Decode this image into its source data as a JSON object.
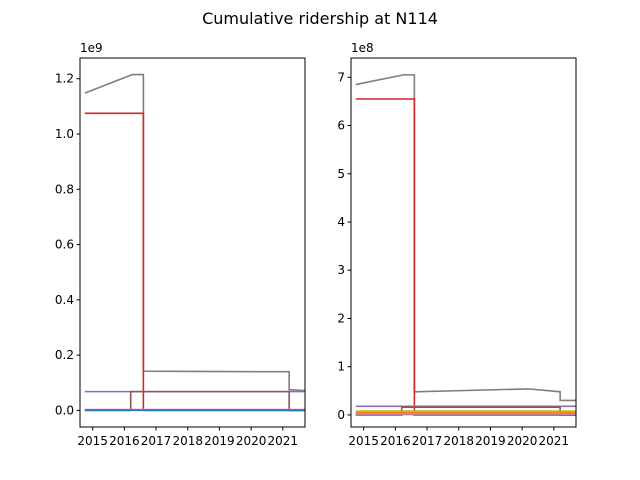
{
  "chart_data": {
    "title": "Cumulative ridership at N114",
    "colors": {
      "blue": "#1f77b4",
      "orange": "#ff7f0e",
      "green": "#2ca02c",
      "red": "#d62728",
      "purple": "#9467bd",
      "brown": "#8c564b",
      "pink": "#e377c2",
      "gray": "#7f7f7f",
      "olive": "#bcbd22",
      "cyan": "#17becf"
    },
    "panels": [
      {
        "type": "line",
        "step": "post",
        "multiplier_label": "1e9",
        "xlim": [
          2014.6,
          2021.7
        ],
        "ylim": [
          -0.06,
          1.275
        ],
        "xticks": [
          {
            "value": 2015,
            "label": "2015"
          },
          {
            "value": 2016,
            "label": "2016"
          },
          {
            "value": 2017,
            "label": "2017"
          },
          {
            "value": 2018,
            "label": "2018"
          },
          {
            "value": 2019,
            "label": "2019"
          },
          {
            "value": 2020,
            "label": "2020"
          },
          {
            "value": 2021,
            "label": "2021"
          }
        ],
        "yticks": [
          {
            "value": 0.0,
            "label": "0.0"
          },
          {
            "value": 0.2,
            "label": "0.2"
          },
          {
            "value": 0.4,
            "label": "0.4"
          },
          {
            "value": 0.6,
            "label": "0.6"
          },
          {
            "value": 0.8,
            "label": "0.8"
          },
          {
            "value": 1.0,
            "label": "1.0"
          },
          {
            "value": 1.2,
            "label": "1.2"
          }
        ],
        "series": [
          {
            "color": "gray",
            "x": [
              2014.75,
              2016.25,
              2016.6,
              2016.6,
              2020.2,
              2021.2,
              2021.2,
              2021.7
            ],
            "y": [
              1.148,
              1.215,
              1.215,
              0.142,
              0.14,
              0.14,
              0.075,
              0.072
            ]
          },
          {
            "color": "red",
            "x": [
              2014.75,
              2016.6,
              2016.6,
              2021.7
            ],
            "y": [
              1.075,
              1.075,
              0.0,
              0.0
            ]
          },
          {
            "color": "purple",
            "x": [
              2014.75,
              2021.7
            ],
            "y": [
              0.068,
              0.068
            ]
          },
          {
            "color": "brown",
            "x": [
              2014.75,
              2016.2,
              2016.2,
              2021.2,
              2021.2,
              2021.7
            ],
            "y": [
              0.0,
              0.0,
              0.068,
              0.068,
              0.0,
              0.0
            ]
          },
          {
            "color": "pink",
            "x": [
              2014.75,
              2021.7
            ],
            "y": [
              0.003,
              0.003
            ]
          },
          {
            "color": "blue",
            "x": [
              2014.75,
              2021.7
            ],
            "y": [
              0.001,
              0.001
            ]
          }
        ]
      },
      {
        "type": "line",
        "step": "post",
        "multiplier_label": "1e8",
        "xlim": [
          2014.6,
          2021.7
        ],
        "ylim": [
          -0.25,
          7.4
        ],
        "xticks": [
          {
            "value": 2015,
            "label": "2015"
          },
          {
            "value": 2016,
            "label": "2016"
          },
          {
            "value": 2017,
            "label": "2017"
          },
          {
            "value": 2018,
            "label": "2018"
          },
          {
            "value": 2019,
            "label": "2019"
          },
          {
            "value": 2020,
            "label": "2020"
          },
          {
            "value": 2021,
            "label": "2021"
          }
        ],
        "yticks": [
          {
            "value": 0,
            "label": "0"
          },
          {
            "value": 1,
            "label": "1"
          },
          {
            "value": 2,
            "label": "2"
          },
          {
            "value": 3,
            "label": "3"
          },
          {
            "value": 4,
            "label": "4"
          },
          {
            "value": 5,
            "label": "5"
          },
          {
            "value": 6,
            "label": "6"
          },
          {
            "value": 7,
            "label": "7"
          }
        ],
        "series": [
          {
            "color": "gray",
            "x": [
              2014.75,
              2016.25,
              2016.6,
              2016.6,
              2020.2,
              2021.2,
              2021.2,
              2021.7
            ],
            "y": [
              6.85,
              7.05,
              7.05,
              0.48,
              0.54,
              0.48,
              0.3,
              0.3
            ]
          },
          {
            "color": "red",
            "x": [
              2014.75,
              2016.6,
              2016.6,
              2021.7
            ],
            "y": [
              6.55,
              6.55,
              0.0,
              0.0
            ]
          },
          {
            "color": "purple",
            "x": [
              2014.75,
              2021.7
            ],
            "y": [
              0.18,
              0.18
            ]
          },
          {
            "color": "brown",
            "x": [
              2014.75,
              2016.2,
              2016.2,
              2021.2,
              2021.2,
              2021.7
            ],
            "y": [
              0.0,
              0.0,
              0.16,
              0.16,
              0.0,
              0.0
            ]
          },
          {
            "color": "olive",
            "x": [
              2014.75,
              2021.7
            ],
            "y": [
              0.08,
              0.08
            ]
          },
          {
            "color": "orange",
            "x": [
              2014.75,
              2021.7
            ],
            "y": [
              0.05,
              0.05
            ]
          },
          {
            "color": "cyan",
            "x": [
              2014.75,
              2021.7
            ],
            "y": [
              0.02,
              0.02
            ]
          },
          {
            "color": "green",
            "x": [
              2014.75,
              2021.7
            ],
            "y": [
              0.01,
              0.01
            ]
          },
          {
            "color": "pink",
            "x": [
              2014.75,
              2021.7
            ],
            "y": [
              0.02,
              0.02
            ]
          }
        ]
      }
    ]
  }
}
